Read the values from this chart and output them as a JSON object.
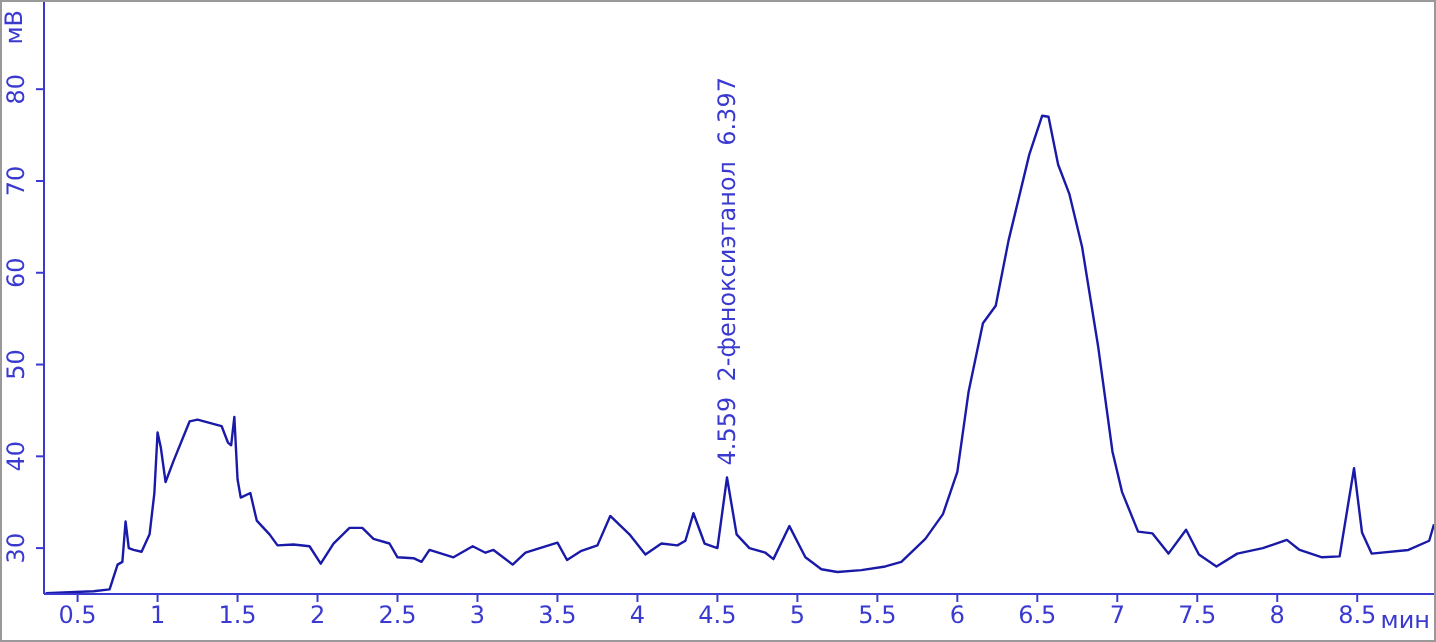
{
  "chart_data": {
    "type": "line",
    "xlabel": "мин",
    "ylabel": "мВ",
    "xlim": [
      0.29,
      8.98
    ],
    "ylim": [
      25,
      89.5
    ],
    "xticks": [
      0.5,
      1,
      1.5,
      2,
      2.5,
      3,
      3.5,
      4,
      4.5,
      5,
      5.5,
      6,
      6.5,
      7,
      7.5,
      8,
      8.5
    ],
    "yticks": [
      30,
      40,
      50,
      60,
      70,
      80
    ],
    "grid": false,
    "legend": false,
    "marker": "none",
    "line_style": "solid",
    "x": [
      0.3,
      0.6,
      0.7,
      0.75,
      0.78,
      0.8,
      0.82,
      0.85,
      0.9,
      0.95,
      0.98,
      1.0,
      1.02,
      1.05,
      1.1,
      1.2,
      1.25,
      1.4,
      1.44,
      1.46,
      1.48,
      1.5,
      1.52,
      1.58,
      1.62,
      1.7,
      1.75,
      1.85,
      1.95,
      2.02,
      2.1,
      2.2,
      2.28,
      2.35,
      2.45,
      2.5,
      2.6,
      2.65,
      2.7,
      2.85,
      2.97,
      3.05,
      3.1,
      3.22,
      3.3,
      3.5,
      3.56,
      3.65,
      3.75,
      3.83,
      3.95,
      4.05,
      4.15,
      4.25,
      4.3,
      4.35,
      4.42,
      4.5,
      4.56,
      4.62,
      4.7,
      4.8,
      4.85,
      4.95,
      5.05,
      5.15,
      5.25,
      5.4,
      5.55,
      5.65,
      5.8,
      5.91,
      6.0,
      6.07,
      6.16,
      6.24,
      6.32,
      6.45,
      6.53,
      6.57,
      6.63,
      6.7,
      6.78,
      6.88,
      6.97,
      7.03,
      7.13,
      7.22,
      7.32,
      7.43,
      7.51,
      7.62,
      7.75,
      7.91,
      8.06,
      8.14,
      8.28,
      8.39,
      8.48,
      8.53,
      8.59,
      8.82,
      8.95,
      8.98
    ],
    "series": [
      {
        "color": "#1a1aa8",
        "values": [
          25.1,
          25.3,
          25.5,
          28.2,
          28.5,
          32.9,
          30,
          29.8,
          29.6,
          31.5,
          36,
          42.6,
          41,
          37.2,
          39.5,
          43.8,
          44,
          43.3,
          41.5,
          41.2,
          44.3,
          37.5,
          35.5,
          36,
          33,
          31.5,
          30.3,
          30.4,
          30.2,
          28.3,
          30.5,
          32.2,
          32.2,
          31,
          30.5,
          29,
          28.9,
          28.5,
          29.8,
          29,
          30.2,
          29.5,
          29.8,
          28.2,
          29.5,
          30.6,
          28.7,
          29.7,
          30.3,
          33.5,
          31.5,
          29.3,
          30.5,
          30.3,
          30.8,
          33.8,
          30.5,
          30,
          37.7,
          31.5,
          30,
          29.5,
          28.8,
          32.4,
          29,
          27.7,
          27.4,
          27.6,
          28,
          28.5,
          31,
          33.7,
          38.3,
          47,
          54.5,
          56.4,
          63.5,
          72.9,
          77.1,
          77,
          71.8,
          68.6,
          62.8,
          52,
          40.5,
          36.1,
          31.8,
          31.6,
          29.4,
          32,
          29.3,
          28,
          29.4,
          30,
          30.9,
          29.8,
          29,
          29.1,
          38.7,
          31.7,
          29.4,
          29.8,
          30.8,
          32.6
        ]
      }
    ],
    "annotations": [
      {
        "text": "4.559  2-феноксиэтанол  6.397",
        "x": 4.559,
        "y": 37.7
      }
    ]
  }
}
